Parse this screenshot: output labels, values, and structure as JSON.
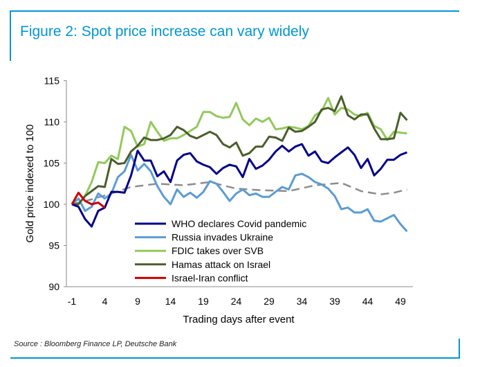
{
  "colors": {
    "frame": "#0096d6",
    "who": "#00008b",
    "russia": "#5b9bd5",
    "fdic": "#92c95a",
    "hamas": "#4a5e2a",
    "iran": "#cc0000",
    "average": "#8c8c8c"
  },
  "title": "Figure 2: Spot price increase can vary widely",
  "source": "Source : Bloomberg Finance LP, Deutsche Bank",
  "chart_data": {
    "type": "line",
    "title": "Figure 2: Spot price increase can vary widely",
    "xlabel": "Trading days after event",
    "ylabel": "Gold price indexed to 100",
    "xlim": [
      -1,
      51
    ],
    "ylim": [
      90,
      115
    ],
    "xticks": [
      -1,
      4,
      9,
      14,
      19,
      24,
      29,
      34,
      39,
      44,
      49
    ],
    "yticks": [
      90,
      95,
      100,
      105,
      110,
      115
    ],
    "legend_position": "bottom-center",
    "x_start": -1,
    "series": [
      {
        "name": "WHO declares Covid pandemic",
        "color_key": "who",
        "values": [
          100,
          99.7,
          98.2,
          97.3,
          99.2,
          99.6,
          101.5,
          101.5,
          101.4,
          103.5,
          106.5,
          105.3,
          105.3,
          103.4,
          104.0,
          102.7,
          105.3,
          106.0,
          106.2,
          105.2,
          104.8,
          104.5,
          103.7,
          104.4,
          104.8,
          104.6,
          103.3,
          105.5,
          104.3,
          104.7,
          105.4,
          106.4,
          107.1,
          106.4,
          107.0,
          107.3,
          105.9,
          106.4,
          105.2,
          105.0,
          105.7,
          106.3,
          106.9,
          106.0,
          104.4,
          105.5,
          103.5,
          104.3,
          105.4,
          105.4,
          106.0,
          106.3
        ]
      },
      {
        "name": "Russia invades Ukraine",
        "color_key": "russia",
        "values": [
          100,
          100.7,
          99.2,
          99.7,
          101.3,
          100.7,
          101.3,
          103.3,
          104.0,
          106.0,
          104.1,
          104.9,
          104.0,
          102.2,
          100.9,
          100.0,
          101.8,
          100.9,
          101.4,
          100.8,
          101.5,
          102.8,
          102.5,
          101.5,
          100.4,
          101.3,
          101.8,
          101.1,
          101.3,
          100.9,
          100.9,
          101.5,
          102.1,
          101.8,
          103.5,
          103.7,
          103.3,
          102.7,
          102.4,
          101.9,
          101.0,
          99.4,
          99.6,
          99.0,
          99.0,
          99.4,
          98.0,
          97.9,
          98.3,
          98.7,
          97.6,
          96.7
        ]
      },
      {
        "name": "FDIC takes over SVB",
        "color_key": "fdic",
        "values": [
          100,
          100,
          101,
          102.7,
          105.1,
          105.0,
          105.9,
          105.5,
          109.4,
          108.9,
          107.0,
          107.3,
          110.0,
          108.8,
          107.7,
          108.0,
          108.0,
          108.4,
          108.9,
          109.4,
          111.2,
          111.2,
          110.7,
          110.5,
          110.6,
          112.3,
          110.3,
          109.6,
          110.4,
          110.0,
          110.5,
          109.1,
          109.2,
          109.4,
          109.3,
          109.1,
          109.5,
          110.8,
          111.3,
          112.9,
          110.9,
          111.7,
          111.5,
          110.9,
          110.7,
          111.1,
          109.5,
          109.1,
          107.8,
          108.8,
          108.7,
          108.6
        ]
      },
      {
        "name": "Hamas attack on Israel",
        "color_key": "hamas",
        "values": [
          100,
          100,
          101,
          101.6,
          102.2,
          102.1,
          105.5,
          104.9,
          105.0,
          106.4,
          107.1,
          108.1,
          107.8,
          107.8,
          108.0,
          108.4,
          109.4,
          109.0,
          108.3,
          108.0,
          108.4,
          108.8,
          108.4,
          107.3,
          106.9,
          107.5,
          105.9,
          106.2,
          107.0,
          107.0,
          108.2,
          108.1,
          107.7,
          109.3,
          108.8,
          108.9,
          109.4,
          110.0,
          111.5,
          111.7,
          111.3,
          113.1,
          110.8,
          110.3,
          110.9,
          110.9,
          109.2,
          107.9,
          107.9,
          108.0,
          111.1,
          110.2
        ]
      },
      {
        "name": "Israel-Iran conflict",
        "color_key": "iran",
        "values": [
          100,
          101.4,
          100.4,
          100.0,
          100.2,
          99.6
        ]
      },
      {
        "name": "Average",
        "color_key": "average",
        "dashed": true,
        "in_legend": false,
        "x": [
          -1,
          2,
          5,
          8,
          12,
          16,
          20,
          24,
          28,
          32,
          36,
          40,
          43,
          46,
          48,
          50
        ],
        "values": [
          100,
          100.6,
          101.3,
          102.1,
          102.5,
          102.3,
          102.7,
          101.9,
          101.7,
          101.6,
          102.3,
          102.6,
          101.6,
          101.2,
          101.4,
          101.8
        ]
      }
    ]
  }
}
